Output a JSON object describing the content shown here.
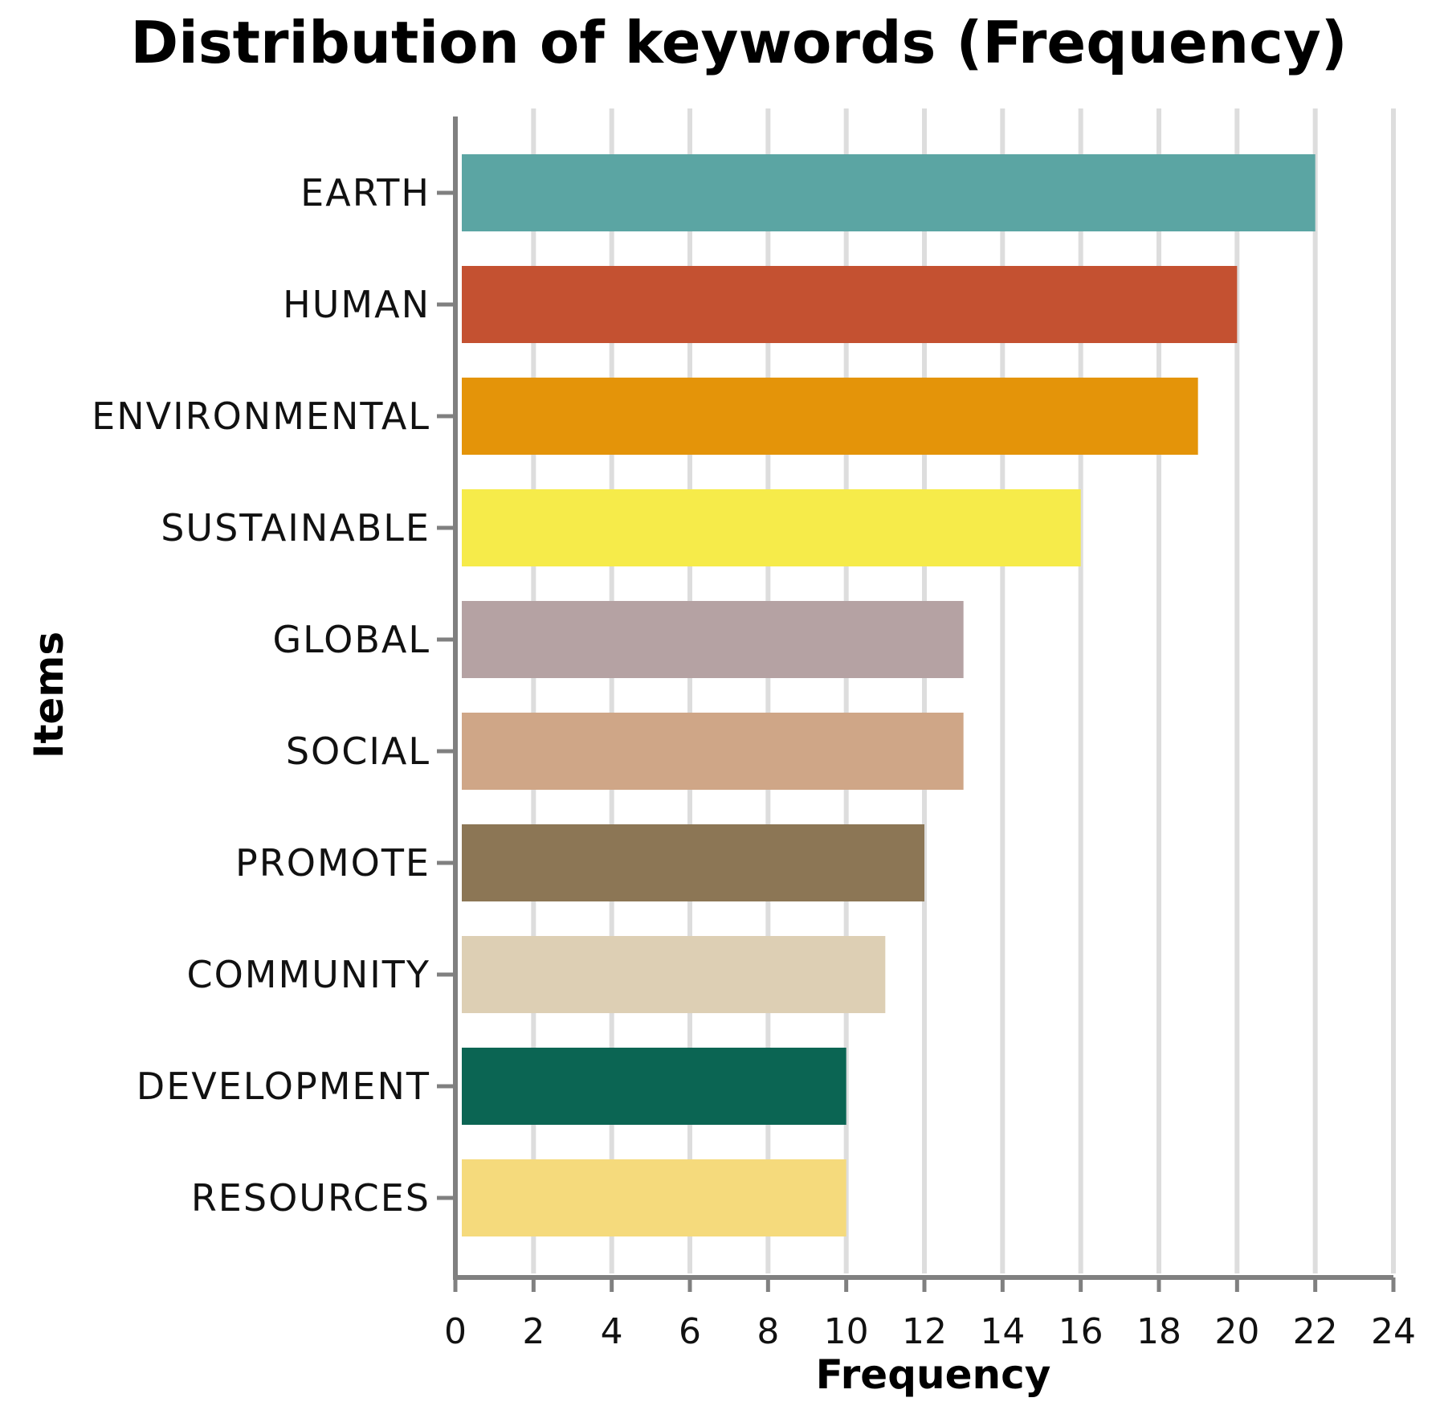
{
  "chart_data": {
    "type": "bar",
    "orientation": "horizontal",
    "title": "Distribution of keywords (Frequency)",
    "xlabel": "Frequency",
    "ylabel": "Items",
    "xlim": [
      0,
      24
    ],
    "xticks": [
      0,
      2,
      4,
      6,
      8,
      10,
      12,
      14,
      16,
      18,
      20,
      22,
      24
    ],
    "grid": true,
    "categories": [
      "EARTH",
      "HUMAN",
      "ENVIRONMENTAL",
      "SUSTAINABLE",
      "GLOBAL",
      "SOCIAL",
      "PROMOTE",
      "COMMUNITY",
      "DEVELOPMENT",
      "RESOURCES"
    ],
    "values": [
      22,
      20,
      19,
      16,
      13,
      13,
      12,
      11,
      10,
      10
    ],
    "colors": [
      "#5ba5a3",
      "#c45131",
      "#e49409",
      "#f6eb4a",
      "#b5a2a3",
      "#cfa687",
      "#8c7655",
      "#ddcfb4",
      "#0b6553",
      "#f5da7c"
    ]
  }
}
